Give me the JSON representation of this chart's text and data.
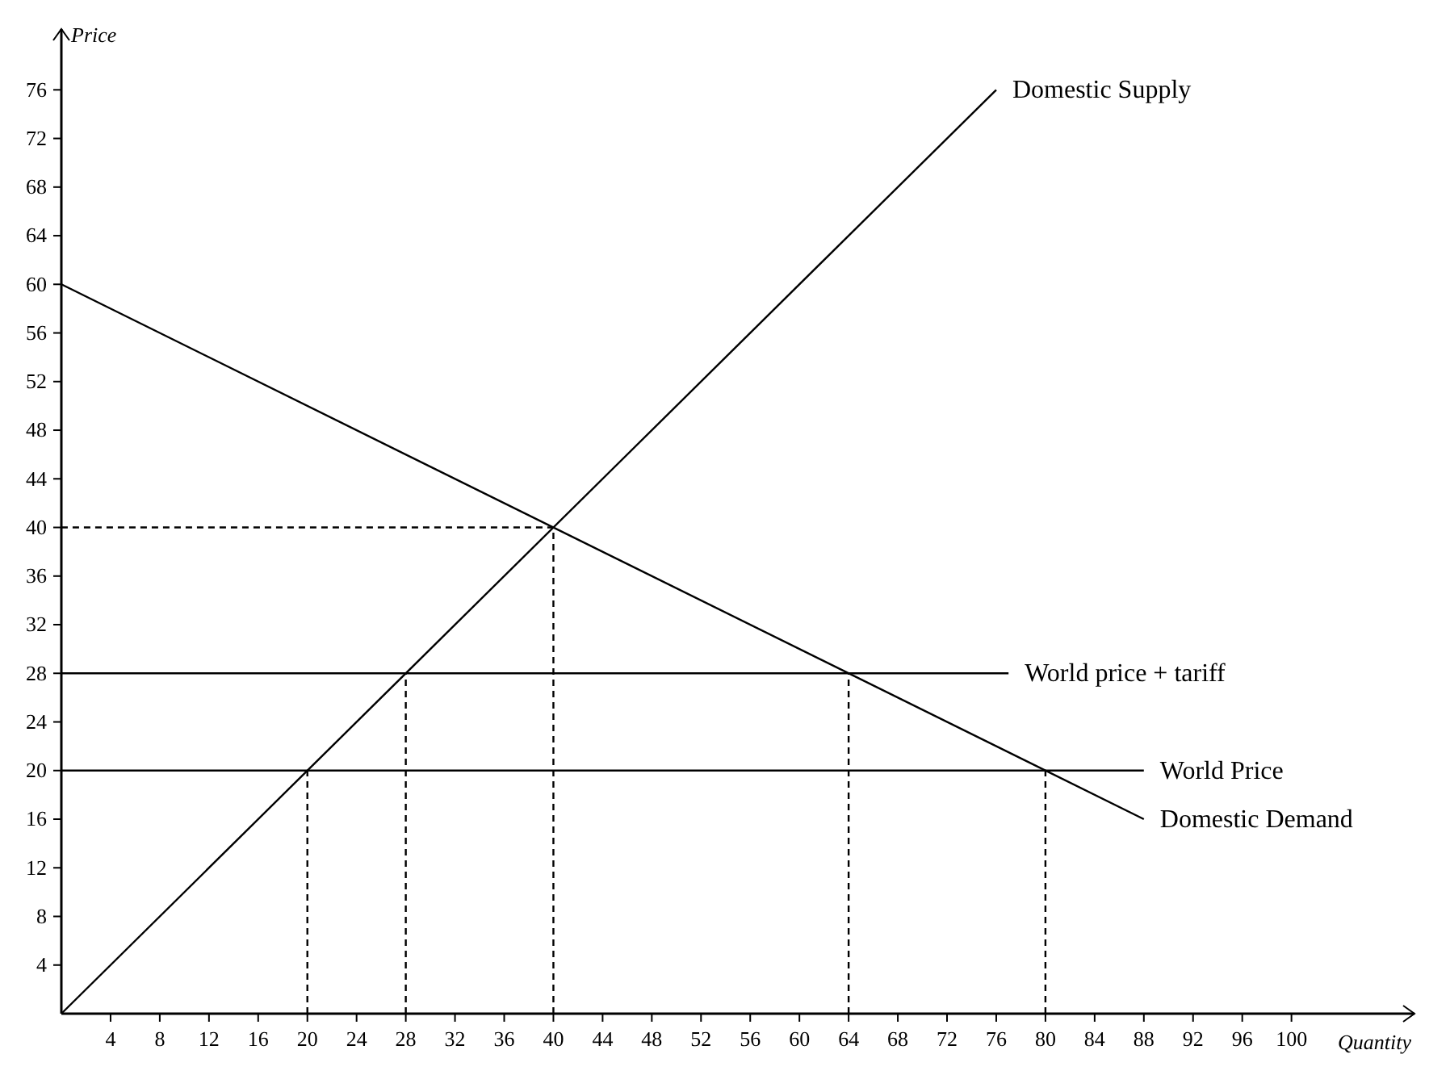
{
  "chart_data": {
    "type": "line",
    "xlabel": "Quantity",
    "ylabel": "Price",
    "xlim": [
      0,
      110
    ],
    "ylim": [
      0,
      81
    ],
    "xticks": [
      4,
      8,
      12,
      16,
      20,
      24,
      28,
      32,
      36,
      40,
      44,
      48,
      52,
      56,
      60,
      64,
      68,
      72,
      76,
      80,
      84,
      88,
      92,
      96,
      100
    ],
    "yticks": [
      4,
      8,
      12,
      16,
      20,
      24,
      28,
      32,
      36,
      40,
      44,
      48,
      52,
      56,
      60,
      64,
      68,
      72,
      76
    ],
    "grid": false,
    "marker": "none",
    "legend": false,
    "series": [
      {
        "name": "Domestic Supply",
        "color": "#000000",
        "x": [
          0,
          76
        ],
        "values": [
          0,
          76
        ]
      },
      {
        "name": "Domestic Demand",
        "color": "#000000",
        "x": [
          0,
          88
        ],
        "values": [
          60,
          16
        ]
      },
      {
        "name": "World price + tariff",
        "color": "#000000",
        "x": [
          0,
          77
        ],
        "values": [
          28,
          28
        ]
      },
      {
        "name": "World Price",
        "color": "#000000",
        "x": [
          0,
          88
        ],
        "values": [
          20,
          20
        ]
      },
      {
        "color": "#000000",
        "line_style": "dashed",
        "x": [
          40,
          40,
          0
        ],
        "values": [
          0,
          40,
          40
        ]
      },
      {
        "color": "#000000",
        "line_style": "dashed",
        "x": [
          20,
          20
        ],
        "values": [
          0,
          20
        ]
      },
      {
        "color": "#000000",
        "line_style": "dashed",
        "x": [
          28,
          28
        ],
        "values": [
          0,
          28
        ]
      },
      {
        "color": "#000000",
        "line_style": "dashed",
        "x": [
          64,
          64
        ],
        "values": [
          0,
          28
        ]
      },
      {
        "color": "#000000",
        "line_style": "dashed",
        "x": [
          80,
          80
        ],
        "values": [
          0,
          20
        ]
      }
    ]
  }
}
